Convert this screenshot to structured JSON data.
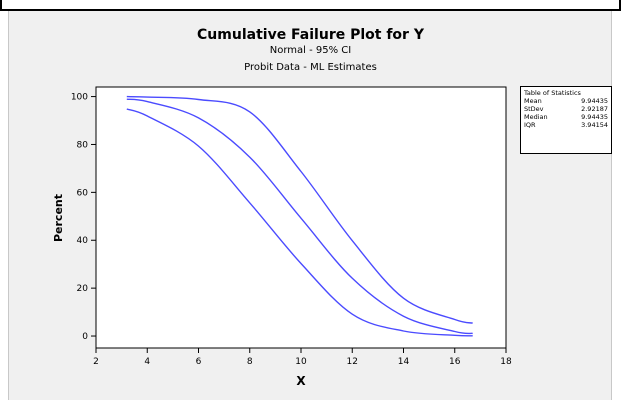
{
  "chart_data": {
    "type": "line",
    "title": "Cumulative Failure Plot for Y",
    "subtitles": [
      "Normal - 95% CI",
      "Probit Data - ML Estimates"
    ],
    "xlabel": "X",
    "ylabel": "Percent",
    "xlim": [
      2,
      18
    ],
    "ylim": [
      -5,
      104
    ],
    "xticks": [
      2,
      4,
      6,
      8,
      10,
      12,
      14,
      16,
      18
    ],
    "yticks": [
      0,
      20,
      40,
      60,
      80,
      100
    ],
    "grid": false,
    "distribution": {
      "mean": 9.94435,
      "sd": 2.92187
    },
    "x_range": [
      3.2,
      16.7
    ],
    "series": [
      {
        "x": [
          3.2,
          4,
          6,
          8,
          10,
          12,
          14,
          16,
          16.7
        ],
        "values": [
          98.9,
          97.9,
          91.1,
          74.7,
          49.2,
          24.1,
          8.3,
          1.9,
          1.1
        ]
      },
      {
        "x": [
          3.2,
          4,
          6,
          8,
          10,
          12,
          14,
          16,
          16.7
        ],
        "values": [
          100,
          99.8,
          98.8,
          93.6,
          68.7,
          39.8,
          15.8,
          6.9,
          5.4
        ]
      },
      {
        "x": [
          3.2,
          4,
          6,
          8,
          10,
          12,
          14,
          16,
          16.7
        ],
        "values": [
          94.8,
          91.9,
          79.3,
          55.6,
          30.3,
          9.1,
          2.1,
          0.3,
          0.1
        ]
      }
    ],
    "colors": {
      "line": "#4b4bff",
      "axis": "#000000",
      "panel": "#f0f0f0",
      "plot_bg": "#ffffff"
    }
  },
  "table_of_statistics": {
    "title": "Table of Statistics",
    "rows": [
      {
        "label": "Mean",
        "value": "9.94435"
      },
      {
        "label": "StDev",
        "value": "2.92187"
      },
      {
        "label": "Median",
        "value": "9.94435"
      },
      {
        "label": "IQR",
        "value": "3.94154"
      }
    ]
  }
}
